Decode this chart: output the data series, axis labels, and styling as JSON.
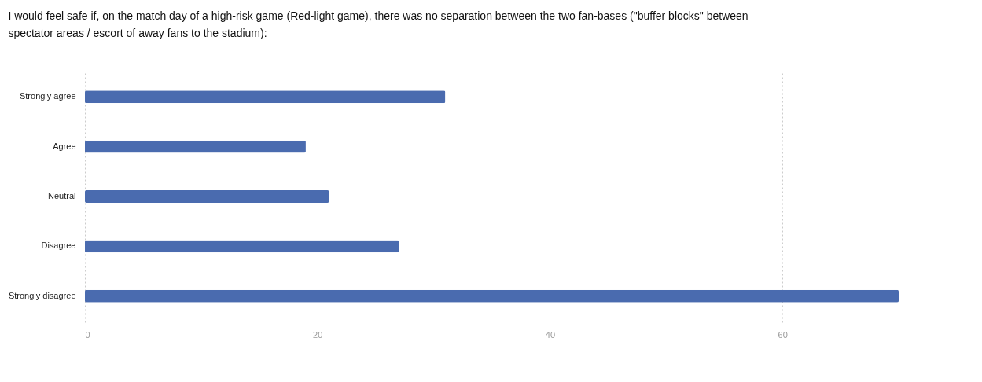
{
  "chart_data": {
    "type": "bar",
    "orientation": "horizontal",
    "title": "I would feel safe if, on the match day of a high-risk game (Red-light game), there was no separation between the two fan-bases (\"buffer blocks\" between spectator areas / escort of away fans to the stadium):",
    "categories": [
      "Strongly agree",
      "Agree",
      "Neutral",
      "Disagree",
      "Strongly disagree"
    ],
    "values": [
      31,
      19,
      21,
      27,
      70
    ],
    "color": "#4a6baf",
    "xlim": [
      0,
      70
    ],
    "xticks": [
      0,
      20,
      40,
      60
    ],
    "grid": "x"
  }
}
